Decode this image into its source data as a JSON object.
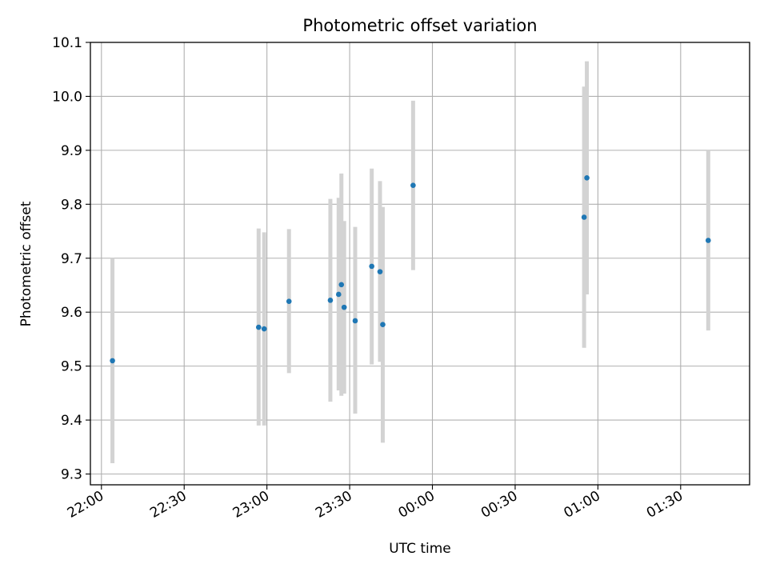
{
  "chart_data": {
    "type": "scatter",
    "title": "Photometric offset variation",
    "xlabel": "UTC time",
    "ylabel": "Photometric offset",
    "grid": true,
    "marker_color": "#1f77b4",
    "errorbar_color": "#d3d3d3",
    "xlim": [
      "21:56",
      "01:55"
    ],
    "ylim": [
      9.28,
      10.1
    ],
    "x_ticks": [
      "22:00",
      "22:30",
      "23:00",
      "23:30",
      "00:00",
      "00:30",
      "01:00",
      "01:30"
    ],
    "y_ticks": [
      "9.3",
      "9.4",
      "9.5",
      "9.6",
      "9.7",
      "9.8",
      "9.9",
      "10.0",
      "10.1"
    ],
    "points": [
      {
        "x": "22:04",
        "y": 9.51,
        "err_low": 9.32,
        "err_high": 9.7
      },
      {
        "x": "22:57",
        "y": 9.572,
        "err_low": 9.39,
        "err_high": 9.755
      },
      {
        "x": "22:59",
        "y": 9.569,
        "err_low": 9.39,
        "err_high": 9.748
      },
      {
        "x": "23:08",
        "y": 9.62,
        "err_low": 9.487,
        "err_high": 9.754
      },
      {
        "x": "23:23",
        "y": 9.622,
        "err_low": 9.434,
        "err_high": 9.81
      },
      {
        "x": "23:26",
        "y": 9.633,
        "err_low": 9.455,
        "err_high": 9.812
      },
      {
        "x": "23:27",
        "y": 9.651,
        "err_low": 9.445,
        "err_high": 9.857
      },
      {
        "x": "23:28",
        "y": 9.609,
        "err_low": 9.449,
        "err_high": 9.769
      },
      {
        "x": "23:32",
        "y": 9.584,
        "err_low": 9.412,
        "err_high": 9.758
      },
      {
        "x": "23:38",
        "y": 9.685,
        "err_low": 9.503,
        "err_high": 9.866
      },
      {
        "x": "23:41",
        "y": 9.675,
        "err_low": 9.508,
        "err_high": 9.843
      },
      {
        "x": "23:42",
        "y": 9.577,
        "err_low": 9.358,
        "err_high": 9.795
      },
      {
        "x": "23:53",
        "y": 9.835,
        "err_low": 9.678,
        "err_high": 9.992
      },
      {
        "x": "00:55",
        "y": 9.776,
        "err_low": 9.534,
        "err_high": 10.018
      },
      {
        "x": "00:56",
        "y": 9.849,
        "err_low": 9.633,
        "err_high": 10.065
      },
      {
        "x": "01:40",
        "y": 9.733,
        "err_low": 9.566,
        "err_high": 9.9
      }
    ]
  }
}
